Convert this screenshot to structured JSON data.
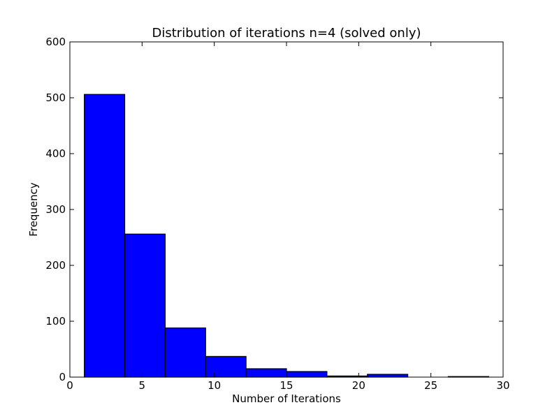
{
  "chart_data": {
    "type": "bar",
    "title": "Distribution of iterations n=4 (solved only)",
    "xlabel": "Number of Iterations",
    "ylabel": "Frequency",
    "xlim": [
      0,
      30
    ],
    "ylim": [
      0,
      600
    ],
    "xticks": [
      0,
      5,
      10,
      15,
      20,
      25,
      30
    ],
    "yticks": [
      0,
      100,
      200,
      300,
      400,
      500,
      600
    ],
    "grid": false,
    "legend": "none",
    "bar_color": "#0000ff",
    "bins": [
      {
        "x0": 1.0,
        "x1": 3.8,
        "value": 506
      },
      {
        "x0": 3.8,
        "x1": 6.6,
        "value": 256
      },
      {
        "x0": 6.6,
        "x1": 9.4,
        "value": 88
      },
      {
        "x0": 9.4,
        "x1": 12.2,
        "value": 37
      },
      {
        "x0": 12.2,
        "x1": 15.0,
        "value": 15
      },
      {
        "x0": 15.0,
        "x1": 17.8,
        "value": 10
      },
      {
        "x0": 17.8,
        "x1": 20.6,
        "value": 2
      },
      {
        "x0": 20.6,
        "x1": 23.4,
        "value": 5
      },
      {
        "x0": 23.4,
        "x1": 26.2,
        "value": 0
      },
      {
        "x0": 26.2,
        "x1": 29.0,
        "value": 1
      }
    ]
  }
}
